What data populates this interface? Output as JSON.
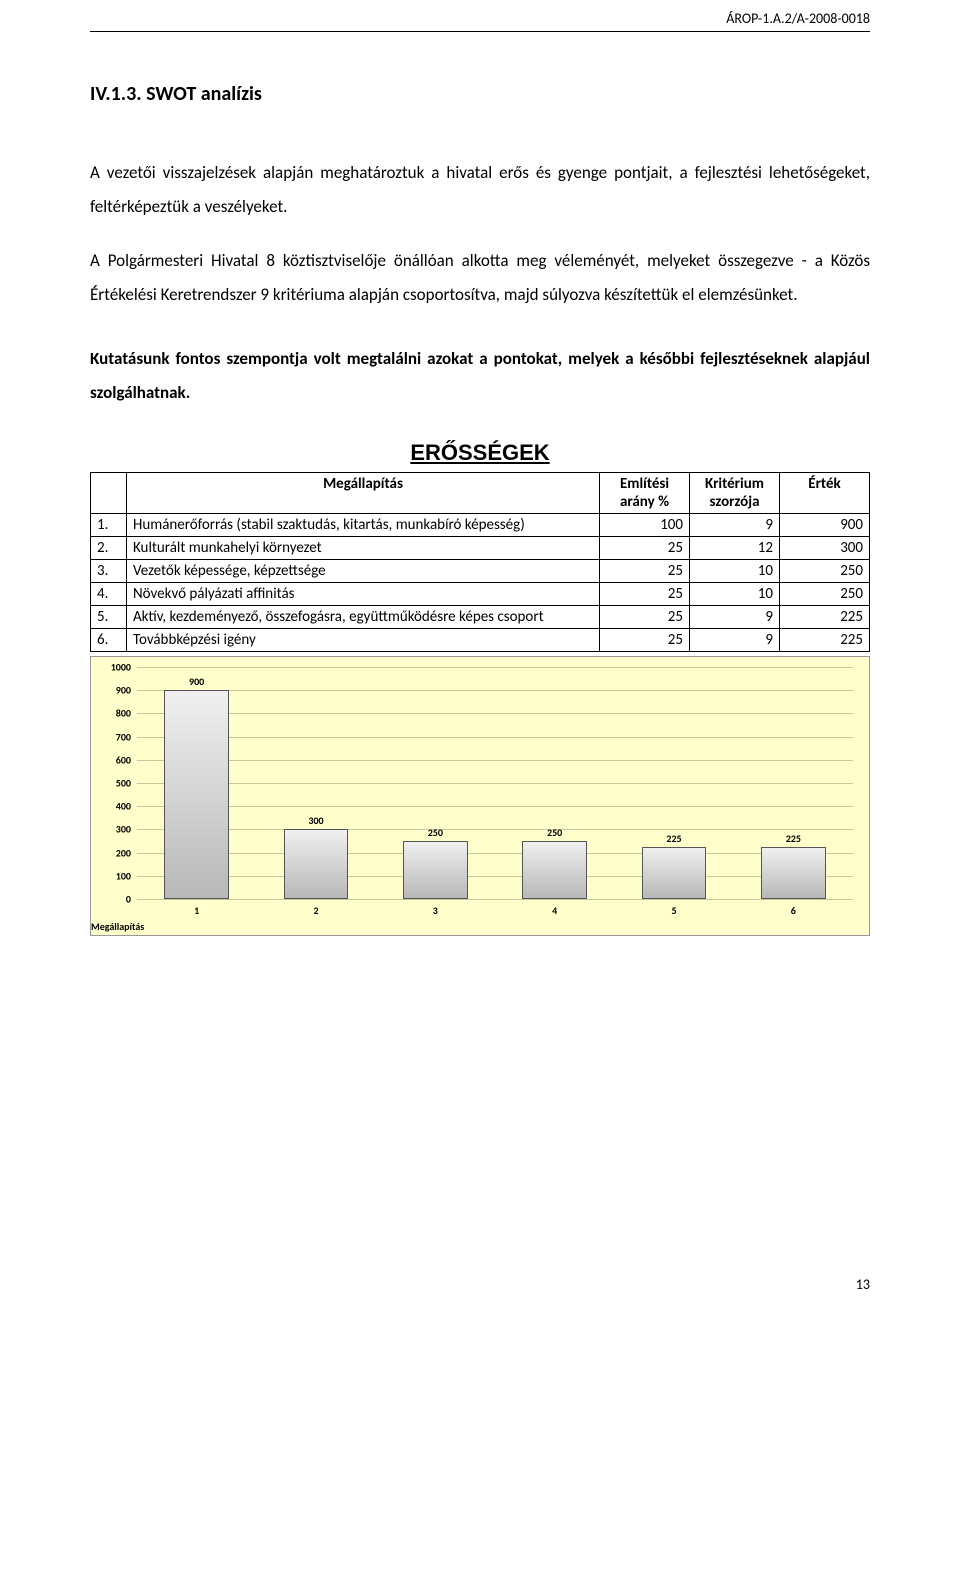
{
  "header": {
    "code": "ÁROP-1.A.2/A-2008-0018"
  },
  "section": {
    "title": "IV.1.3. SWOT analízis",
    "para1": "A vezetői visszajelzések alapján meghatároztuk a hivatal erős és gyenge pontjait, a fejlesztési lehetőségeket, feltérképeztük a veszélyeket.",
    "para2": "A Polgármesteri Hivatal 8 köztisztviselője önállóan alkotta meg véleményét, melyeket összegezve - a Közös Értékelési Keretrendszer 9 kritériuma alapján csoportosítva, majd súlyozva készítettük el elemzésünket.",
    "boldPara": "Kutatásunk fontos szempontja volt megtalálni azokat a pontokat, melyek a későbbi fejlesztéseknek alapjául szolgálhatnak."
  },
  "table": {
    "title": "ERŐSSÉGEK",
    "headers": {
      "desc": "Megállapítás",
      "c1": "Említési arány %",
      "c2": "Kritérium szorzója",
      "c3": "Érték"
    },
    "rows": [
      {
        "n": "1.",
        "desc": "Humánerőforrás (stabil szaktudás, kitartás, munkabíró képesség)",
        "c1": "100",
        "c2": "9",
        "c3": "900"
      },
      {
        "n": "2.",
        "desc": "Kulturált munkahelyi környezet",
        "c1": "25",
        "c2": "12",
        "c3": "300"
      },
      {
        "n": "3.",
        "desc": "Vezetők képessége, képzettsége",
        "c1": "25",
        "c2": "10",
        "c3": "250"
      },
      {
        "n": "4.",
        "desc": "Növekvő pályázati affinitás",
        "c1": "25",
        "c2": "10",
        "c3": "250"
      },
      {
        "n": "5.",
        "desc": "Aktív, kezdeményező, összefogásra, együttműködésre képes csoport",
        "c1": "25",
        "c2": "9",
        "c3": "225"
      },
      {
        "n": "6.",
        "desc": "Továbbképzési igény",
        "c1": "25",
        "c2": "9",
        "c3": "225"
      }
    ]
  },
  "chart": {
    "type": "bar",
    "background_color": "#ffffcc",
    "grid_color": "#c8c8a0",
    "bar_fill_top": "#f0f0f0",
    "bar_fill_bottom": "#b8b8b8",
    "bar_border": "#555555",
    "ylim": [
      0,
      1000
    ],
    "ytick_step": 100,
    "bar_width_pct": 9,
    "xaxis_title": "Megállapítás",
    "label_fontsize": 10,
    "categories": [
      "1",
      "2",
      "3",
      "4",
      "5",
      "6"
    ],
    "values": [
      900,
      300,
      250,
      250,
      225,
      225
    ]
  },
  "footer": {
    "pageNumber": "13"
  }
}
